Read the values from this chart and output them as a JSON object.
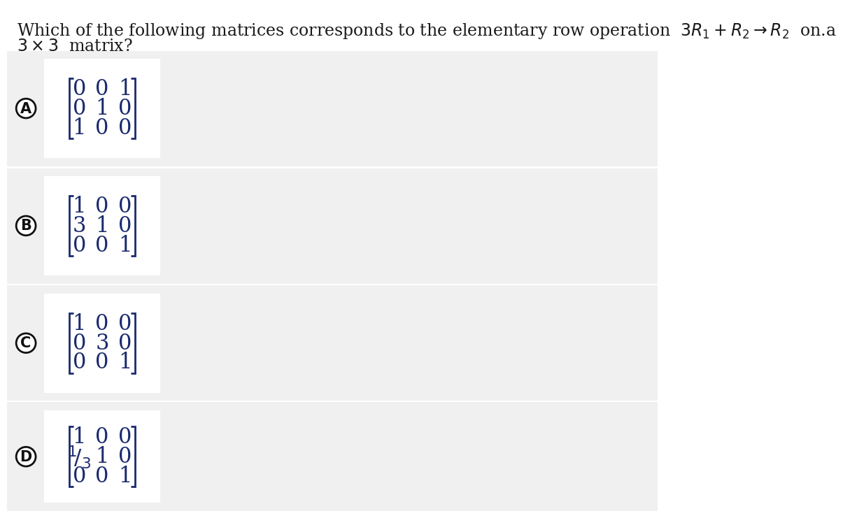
{
  "title_line1": "Which of the following matrices corresponds to the elementary row operation  $3R_1 + R_2 \\rightarrow R_2$  on.a",
  "title_line2": "$3 \\times 3$  matrix?",
  "bg_color": "#ffffff",
  "band_color": "#f0f0f0",
  "matrix_box_color": "#f5f5f5",
  "text_color": "#1a1a1a",
  "matrix_color": "#1a2a6e",
  "options": [
    {
      "label": "A",
      "matrix": [
        [
          "0",
          "0",
          "1"
        ],
        [
          "0",
          "1",
          "0"
        ],
        [
          "1",
          "0",
          "0"
        ]
      ]
    },
    {
      "label": "B",
      "matrix": [
        [
          "1",
          "0",
          "0"
        ],
        [
          "3",
          "1",
          "0"
        ],
        [
          "0",
          "0",
          "1"
        ]
      ]
    },
    {
      "label": "C",
      "matrix": [
        [
          "1",
          "0",
          "0"
        ],
        [
          "0",
          "3",
          "0"
        ],
        [
          "0",
          "0",
          "1"
        ]
      ]
    },
    {
      "label": "D",
      "matrix": [
        [
          "1",
          "0",
          "0"
        ],
        [
          "$^1\\!/_3$",
          "1",
          "0"
        ],
        [
          "0",
          "0",
          "1"
        ]
      ]
    }
  ],
  "title_fontsize": 17,
  "matrix_fontsize": 22,
  "label_fontsize": 15
}
